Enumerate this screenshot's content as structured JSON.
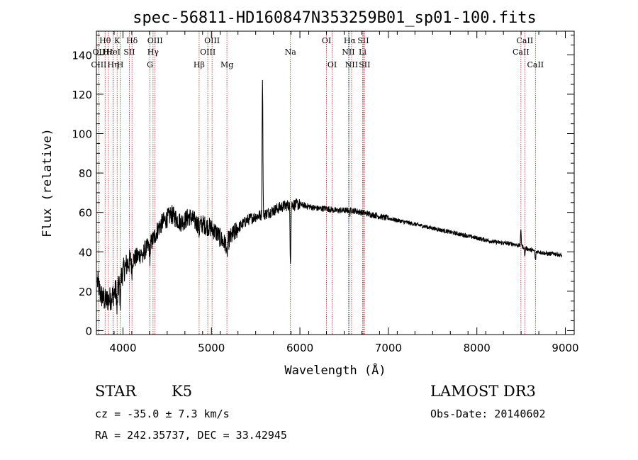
{
  "chart_data": {
    "type": "line",
    "title": "spec-56811-HD160847N353259B01_sp01-100.fits",
    "xlabel": "Wavelength (Å)",
    "ylabel": "Flux (relative)",
    "xlim": [
      3700,
      9100
    ],
    "ylim": [
      -2,
      152
    ],
    "xticks": [
      4000,
      5000,
      6000,
      7000,
      8000,
      9000
    ],
    "yticks": [
      0,
      20,
      40,
      60,
      80,
      100,
      120,
      140
    ],
    "grid": false,
    "line_color": "#000000",
    "marker_color": "#b22222",
    "spectrum_anchors": [
      [
        3710,
        25
      ],
      [
        3750,
        18
      ],
      [
        3800,
        15
      ],
      [
        3850,
        16
      ],
      [
        3900,
        19
      ],
      [
        3950,
        22
      ],
      [
        4000,
        30
      ],
      [
        4050,
        34
      ],
      [
        4100,
        36
      ],
      [
        4150,
        37
      ],
      [
        4200,
        39
      ],
      [
        4250,
        41
      ],
      [
        4300,
        43
      ],
      [
        4350,
        47
      ],
      [
        4400,
        52
      ],
      [
        4450,
        55
      ],
      [
        4500,
        57
      ],
      [
        4550,
        59
      ],
      [
        4600,
        57
      ],
      [
        4650,
        55
      ],
      [
        4700,
        56
      ],
      [
        4750,
        58
      ],
      [
        4800,
        56
      ],
      [
        4850,
        54
      ],
      [
        4900,
        54
      ],
      [
        4950,
        53
      ],
      [
        5000,
        52
      ],
      [
        5050,
        50
      ],
      [
        5100,
        47
      ],
      [
        5150,
        44
      ],
      [
        5200,
        46
      ],
      [
        5300,
        52
      ],
      [
        5400,
        56
      ],
      [
        5500,
        58
      ],
      [
        5600,
        59
      ],
      [
        5700,
        61
      ],
      [
        5800,
        63
      ],
      [
        5900,
        64
      ],
      [
        6000,
        64
      ],
      [
        6100,
        63
      ],
      [
        6200,
        62
      ],
      [
        6300,
        62
      ],
      [
        6400,
        61
      ],
      [
        6500,
        61
      ],
      [
        6600,
        61
      ],
      [
        6700,
        60
      ],
      [
        6800,
        59
      ],
      [
        6900,
        58
      ],
      [
        7000,
        57
      ],
      [
        7200,
        55
      ],
      [
        7400,
        53
      ],
      [
        7600,
        51
      ],
      [
        7800,
        49
      ],
      [
        8000,
        47
      ],
      [
        8200,
        45
      ],
      [
        8400,
        44
      ],
      [
        8500,
        43
      ],
      [
        8600,
        41
      ],
      [
        8700,
        40
      ],
      [
        8800,
        39
      ],
      [
        8900,
        39
      ],
      [
        8960,
        38
      ]
    ],
    "spectrum_features": [
      {
        "x": 3934,
        "depth": 12
      },
      {
        "x": 3969,
        "depth": 10
      },
      {
        "x": 4101,
        "depth": 6
      },
      {
        "x": 4226,
        "depth": 5
      },
      {
        "x": 4305,
        "depth": 6
      },
      {
        "x": 4861,
        "depth": 4
      },
      {
        "x": 5175,
        "depth": 9
      },
      {
        "x": 5577,
        "depth": -70
      },
      {
        "x": 5893,
        "depth": 28
      },
      {
        "x": 6563,
        "depth": 2
      },
      {
        "x": 8498,
        "depth": -8
      },
      {
        "x": 8542,
        "depth": 4
      },
      {
        "x": 8662,
        "depth": 5
      }
    ],
    "line_markers": [
      {
        "label": "Hθ",
        "x": 3798,
        "row": 0
      },
      {
        "label": "OII",
        "x": 3727,
        "row": 1
      },
      {
        "label": "OIII",
        "x": 3727,
        "row": 2
      },
      {
        "label": "Hε",
        "x": 3835,
        "row": 1
      },
      {
        "label": "Hη",
        "x": 3889,
        "row": 2
      },
      {
        "label": "K",
        "x": 3934,
        "row": 0
      },
      {
        "label": "HeI",
        "x": 3890,
        "row": 1
      },
      {
        "label": "H",
        "x": 3969,
        "row": 2
      },
      {
        "label": "SII",
        "x": 4072,
        "row": 1
      },
      {
        "label": "Hδ",
        "x": 4102,
        "row": 0
      },
      {
        "label": "OIII",
        "x": 4363,
        "row": 0
      },
      {
        "label": "Hγ",
        "x": 4340,
        "row": 1
      },
      {
        "label": "G",
        "x": 4305,
        "row": 2
      },
      {
        "label": "Hβ",
        "x": 4861,
        "row": 2
      },
      {
        "label": "OIII",
        "x": 5007,
        "row": 0
      },
      {
        "label": "OIII",
        "x": 4959,
        "row": 1
      },
      {
        "label": "Mg",
        "x": 5175,
        "row": 2
      },
      {
        "label": "Na",
        "x": 5893,
        "row": 1
      },
      {
        "label": "OI",
        "x": 6300,
        "row": 0
      },
      {
        "label": "OI",
        "x": 6364,
        "row": 2
      },
      {
        "label": "Hα",
        "x": 6563,
        "row": 0
      },
      {
        "label": "SII",
        "x": 6716,
        "row": 0
      },
      {
        "label": "NII",
        "x": 6548,
        "row": 1
      },
      {
        "label": "Li",
        "x": 6708,
        "row": 1
      },
      {
        "label": "NII",
        "x": 6584,
        "row": 2
      },
      {
        "label": "SII",
        "x": 6731,
        "row": 2
      },
      {
        "label": "CaII",
        "x": 8542,
        "row": 0
      },
      {
        "label": "CaII",
        "x": 8498,
        "row": 1
      },
      {
        "label": "CaII",
        "x": 8662,
        "row": 2
      }
    ]
  },
  "info": {
    "class": "STAR",
    "subclass": "K5",
    "survey": "LAMOST DR3",
    "cz": "cz = -35.0 ± 7.3 km/s",
    "obs_date": "Obs-Date: 20140602",
    "coords": "RA = 242.35737, DEC =  33.42945"
  }
}
